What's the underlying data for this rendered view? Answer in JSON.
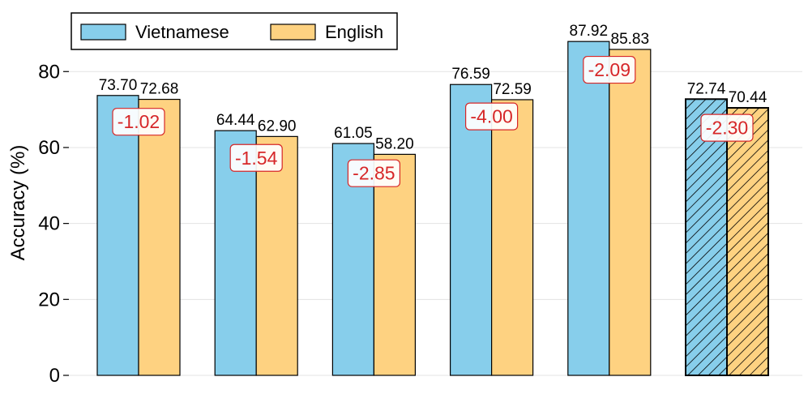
{
  "chart_data": {
    "type": "bar",
    "ylabel": "Accuracy (%)",
    "xlabel": "",
    "ylim": [
      0,
      95
    ],
    "yticks": [
      "0",
      "20",
      "40",
      "60",
      "80"
    ],
    "grid": "horizontal",
    "legend_position": "top-left",
    "categories": [
      "",
      "",
      "",
      "",
      "",
      ""
    ],
    "series": [
      {
        "name": "Vietnamese",
        "color": "#87ceeb",
        "values": [
          73.7,
          64.44,
          61.05,
          76.59,
          87.92,
          72.74
        ],
        "labels": [
          "73.70",
          "64.44",
          "61.05",
          "76.59",
          "87.92",
          "72.74"
        ]
      },
      {
        "name": "English",
        "color": "#fed281",
        "values": [
          72.68,
          62.9,
          58.2,
          72.59,
          85.83,
          70.44
        ],
        "labels": [
          "72.68",
          "62.90",
          "58.20",
          "72.59",
          "85.83",
          "70.44"
        ]
      }
    ],
    "differences": [
      "-1.02",
      "-1.54",
      "-2.85",
      "-4.00",
      "-2.09",
      "-2.30"
    ],
    "hatched_group_index": 5,
    "difference_color": "#d62728"
  }
}
